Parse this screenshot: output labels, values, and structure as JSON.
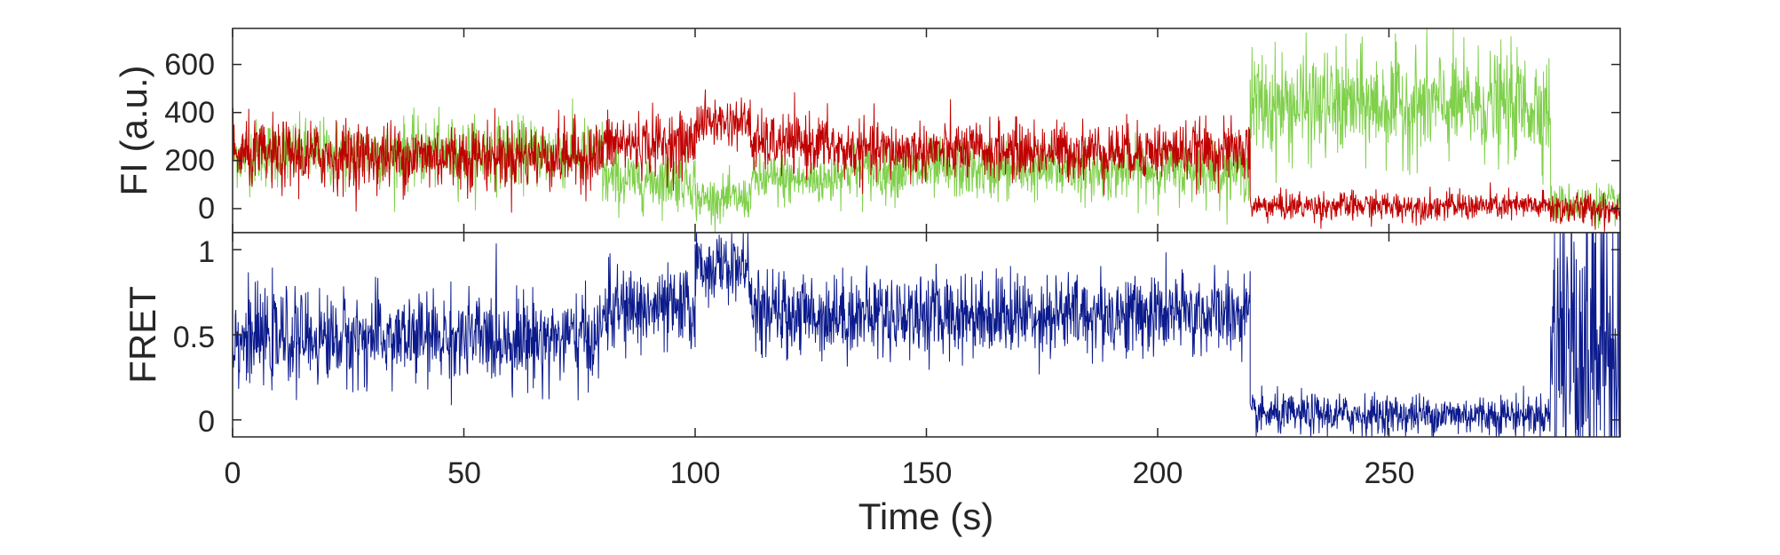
{
  "chart_data": [
    {
      "panel": "top",
      "type": "line",
      "ylabel": "FI (a.u.)",
      "xlim": [
        0,
        300
      ],
      "ylim": [
        -100,
        750
      ],
      "yticks": [
        0,
        200,
        400,
        600
      ],
      "series": [
        {
          "color": "#7fd04a",
          "segments": [
            {
              "x0": 0,
              "x1": 80,
              "mean": 230,
              "noise": 70
            },
            {
              "x0": 80,
              "x1": 100,
              "mean": 120,
              "noise": 60
            },
            {
              "x0": 100,
              "x1": 112,
              "mean": 40,
              "noise": 45
            },
            {
              "x0": 112,
              "x1": 130,
              "mean": 120,
              "noise": 55
            },
            {
              "x0": 130,
              "x1": 220,
              "mean": 160,
              "noise": 60
            },
            {
              "x0": 220,
              "x1": 285,
              "mean": 430,
              "noise": 110
            },
            {
              "x0": 285,
              "x1": 300,
              "mean": 20,
              "noise": 40
            }
          ]
        },
        {
          "color": "#c00000",
          "segments": [
            {
              "x0": 0,
              "x1": 80,
              "mean": 220,
              "noise": 70
            },
            {
              "x0": 80,
              "x1": 100,
              "mean": 270,
              "noise": 65
            },
            {
              "x0": 100,
              "x1": 112,
              "mean": 360,
              "noise": 50
            },
            {
              "x0": 112,
              "x1": 130,
              "mean": 270,
              "noise": 60
            },
            {
              "x0": 130,
              "x1": 220,
              "mean": 240,
              "noise": 60
            },
            {
              "x0": 220,
              "x1": 285,
              "mean": 10,
              "noise": 30
            },
            {
              "x0": 285,
              "x1": 300,
              "mean": 0,
              "noise": 35
            }
          ]
        }
      ]
    },
    {
      "panel": "bottom",
      "type": "line",
      "ylabel": "FRET",
      "xlabel": "Time (s)",
      "xlim": [
        0,
        300
      ],
      "ylim": [
        -0.1,
        1.1
      ],
      "yticks": [
        0,
        0.5,
        1
      ],
      "xticks": [
        0,
        50,
        100,
        150,
        200,
        250
      ],
      "series": [
        {
          "color": "#0b1a8c",
          "segments": [
            {
              "x0": 0,
              "x1": 80,
              "mean": 0.48,
              "noise": 0.13
            },
            {
              "x0": 80,
              "x1": 100,
              "mean": 0.65,
              "noise": 0.12
            },
            {
              "x0": 100,
              "x1": 112,
              "mean": 0.9,
              "noise": 0.1
            },
            {
              "x0": 112,
              "x1": 220,
              "mean": 0.62,
              "noise": 0.12
            },
            {
              "x0": 220,
              "x1": 285,
              "mean": 0.03,
              "noise": 0.06
            },
            {
              "x0": 285,
              "x1": 300,
              "mean": 0.5,
              "noise": 0.6
            }
          ]
        }
      ]
    }
  ],
  "labels": {
    "top_ylabel": "FI (a.u.)",
    "bottom_ylabel": "FRET",
    "xlabel": "Time (s)",
    "top_yticks": [
      "0",
      "200",
      "400",
      "600"
    ],
    "bottom_yticks": [
      "0",
      "0.5",
      "1"
    ],
    "xticks": [
      "0",
      "50",
      "100",
      "150",
      "200",
      "250"
    ]
  }
}
